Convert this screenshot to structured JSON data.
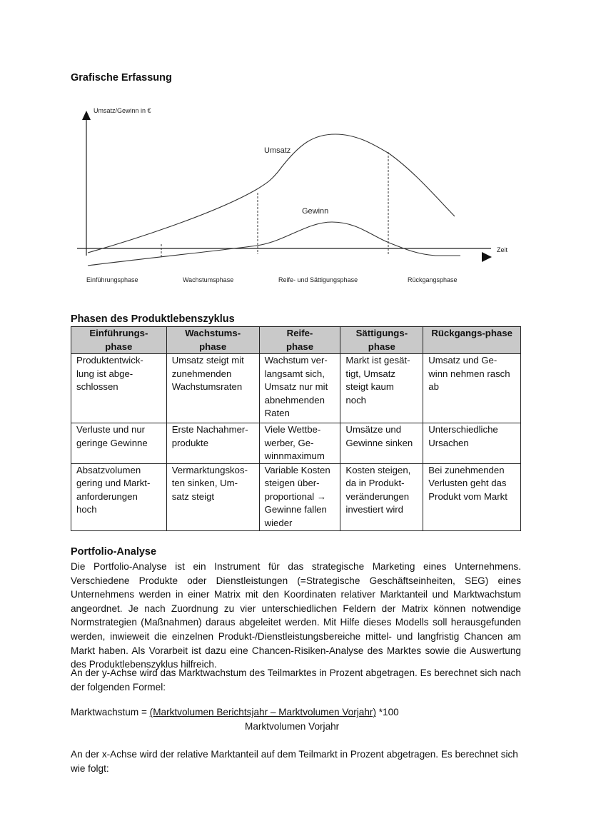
{
  "section1": {
    "title": "Grafische Erfassung"
  },
  "diagram": {
    "y_axis_label": "Umsatz/Gewinn in €",
    "x_axis_label": "Zeit",
    "curve_labels": {
      "umsatz": "Umsatz",
      "gewinn": "Gewinn"
    },
    "phases": [
      "Einführungsphase",
      "Wachstumsphase",
      "Reife- und Sättigungsphase",
      "Rückgangsphase"
    ]
  },
  "section2": {
    "title": "Phasen des Produktlebenszyklus",
    "headers": [
      "Einführungs-\nphase",
      "Wachstums-\nphase",
      "Reife-\nphase",
      "Sättigungs-\nphase",
      "Rückgangs-phase"
    ],
    "rows": [
      [
        "Produktentwick-\nlung ist abge-\nschlossen",
        "Umsatz steigt mit\nzunehmenden\nWachstumsraten",
        "Wachstum ver-\nlangsamt sich,\nUmsatz nur mit\nabnehmenden\nRaten",
        "Markt ist gesät-\ntigt, Umsatz\nsteigt kaum\nnoch",
        "Umsatz und Ge-\nwinn nehmen rasch\nab"
      ],
      [
        "Verluste und nur\ngeringe Gewinne",
        "Erste Nachahmer-\nprodukte",
        "Viele Wettbe-\nwerber, Ge-\nwinnmaximum",
        "Umsätze und\nGewinne sinken",
        "Unterschiedliche\nUrsachen"
      ],
      [
        "Absatzvolumen\ngering und Markt-\nanforderungen\nhoch",
        "Vermarktungskos-\nten sinken, Um-\nsatz steigt",
        "Variable Kosten\nsteigen über-\nproportional →\nGewinne fallen\nwieder",
        "Kosten steigen,\nda in Produkt-\nveränderungen\ninvestiert wird",
        "Bei zunehmenden\nVerlusten geht das\nProdukt vom Markt"
      ]
    ]
  },
  "section3": {
    "title": "Portfolio-Analyse",
    "paragraph1": "Die Portfolio-Analyse ist ein Instrument für das strategische Marketing eines Unternehmens. Verschiedene Produkte oder Dienstleistungen (=Strategische Geschäftseinheiten, SEG) eines Unternehmens werden in einer Matrix mit den Koordinaten relativer Marktanteil und Marktwachstum angeordnet. Je nach Zuordnung zu vier unterschiedlichen Feldern der Matrix können notwendige Normstrategien (Maßnahmen) daraus abgeleitet werden. Mit Hilfe dieses Modells soll herausgefunden werden, inwieweit die einzelnen Produkt-/Dienstleistungsbereiche mittel- und langfristig Chancen am Markt haben. Als Vorarbeit ist dazu eine Chancen-Risiken-Analyse des Marktes sowie die Auswertung des Produktlebenszyklus hilfreich.",
    "paragraph2": "An der y-Achse wird das Marktwachstum des Teilmarktes in Prozent abgetragen. Es berechnet sich nach der folgenden Formel:",
    "formula": {
      "lhs": "Marktwachstum = ",
      "numerator": "(Marktvolumen Berichtsjahr – Marktvolumen Vorjahr)",
      "factor": " *100",
      "denominator": "Marktvolumen Vorjahr"
    },
    "paragraph3": "An der x-Achse wird der relative Marktanteil auf dem Teilmarkt in Prozent abgetragen. Es berechnet sich wie folgt:"
  }
}
